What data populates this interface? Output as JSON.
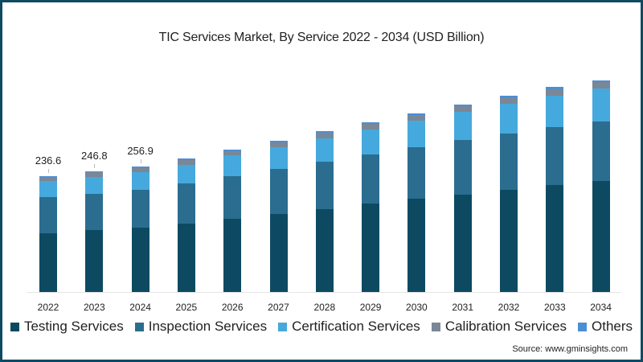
{
  "chart_data": {
    "type": "bar",
    "stacked": true,
    "title": "TIC Services Market, By Service 2022 - 2034 (USD Billion)",
    "xlabel": "",
    "ylabel": "USD Billion",
    "categories": [
      "2022",
      "2023",
      "2024",
      "2025",
      "2026",
      "2027",
      "2028",
      "2029",
      "2030",
      "2031",
      "2032",
      "2033",
      "2034"
    ],
    "series": [
      {
        "name": "Testing Services",
        "color": "#0d4a62",
        "values": [
          120.0,
          126.5,
          131.4,
          139.7,
          149.5,
          159.4,
          169.2,
          180.7,
          190.6,
          198.8,
          208.7,
          218.5,
          226.7
        ]
      },
      {
        "name": "Inspection Services",
        "color": "#2b6d8f",
        "values": [
          73.9,
          73.9,
          77.2,
          82.2,
          87.1,
          92.0,
          96.9,
          100.2,
          105.2,
          111.7,
          115.0,
          118.3,
          121.6
        ]
      },
      {
        "name": "Certification Services",
        "color": "#45a9dd",
        "values": [
          32.9,
          34.5,
          36.1,
          37.8,
          42.7,
          44.4,
          47.6,
          50.9,
          54.2,
          57.5,
          60.8,
          64.1,
          67.4
        ]
      },
      {
        "name": "Calibration Services",
        "color": "#7a8797",
        "values": [
          8.2,
          9.9,
          9.9,
          9.9,
          8.2,
          9.9,
          11.5,
          11.5,
          11.5,
          11.5,
          13.1,
          13.1,
          13.1
        ]
      },
      {
        "name": "Others",
        "color": "#4a8fd6",
        "values": [
          1.6,
          2.0,
          2.3,
          3.1,
          3.3,
          3.2,
          3.4,
          3.4,
          3.2,
          3.3,
          3.3,
          5.0,
          3.3
        ]
      }
    ],
    "totals": [
      236.6,
      246.8,
      256.9,
      272.7,
      290.8,
      308.9,
      328.6,
      346.7,
      364.7,
      382.8,
      400.9,
      419.0,
      432.1
    ],
    "data_labels": {
      "2022": "236.6",
      "2023": "246.8",
      "2024": "256.9"
    },
    "ylim": [
      0,
      500
    ],
    "grid": false,
    "legend_position": "bottom"
  },
  "title": "TIC Services Market, By Service 2022 - 2034 (USD Billion)",
  "legend": [
    {
      "label": "Testing Services",
      "color": "#0d4a62"
    },
    {
      "label": "Inspection Services",
      "color": "#2b6d8f"
    },
    {
      "label": "Certification Services",
      "color": "#45a9dd"
    },
    {
      "label": "Calibration Services",
      "color": "#7a8797"
    },
    {
      "label": "Others",
      "color": "#4a8fd6"
    }
  ],
  "source": "Source: www.gminsights.com",
  "frame_color": "#0f4a63"
}
